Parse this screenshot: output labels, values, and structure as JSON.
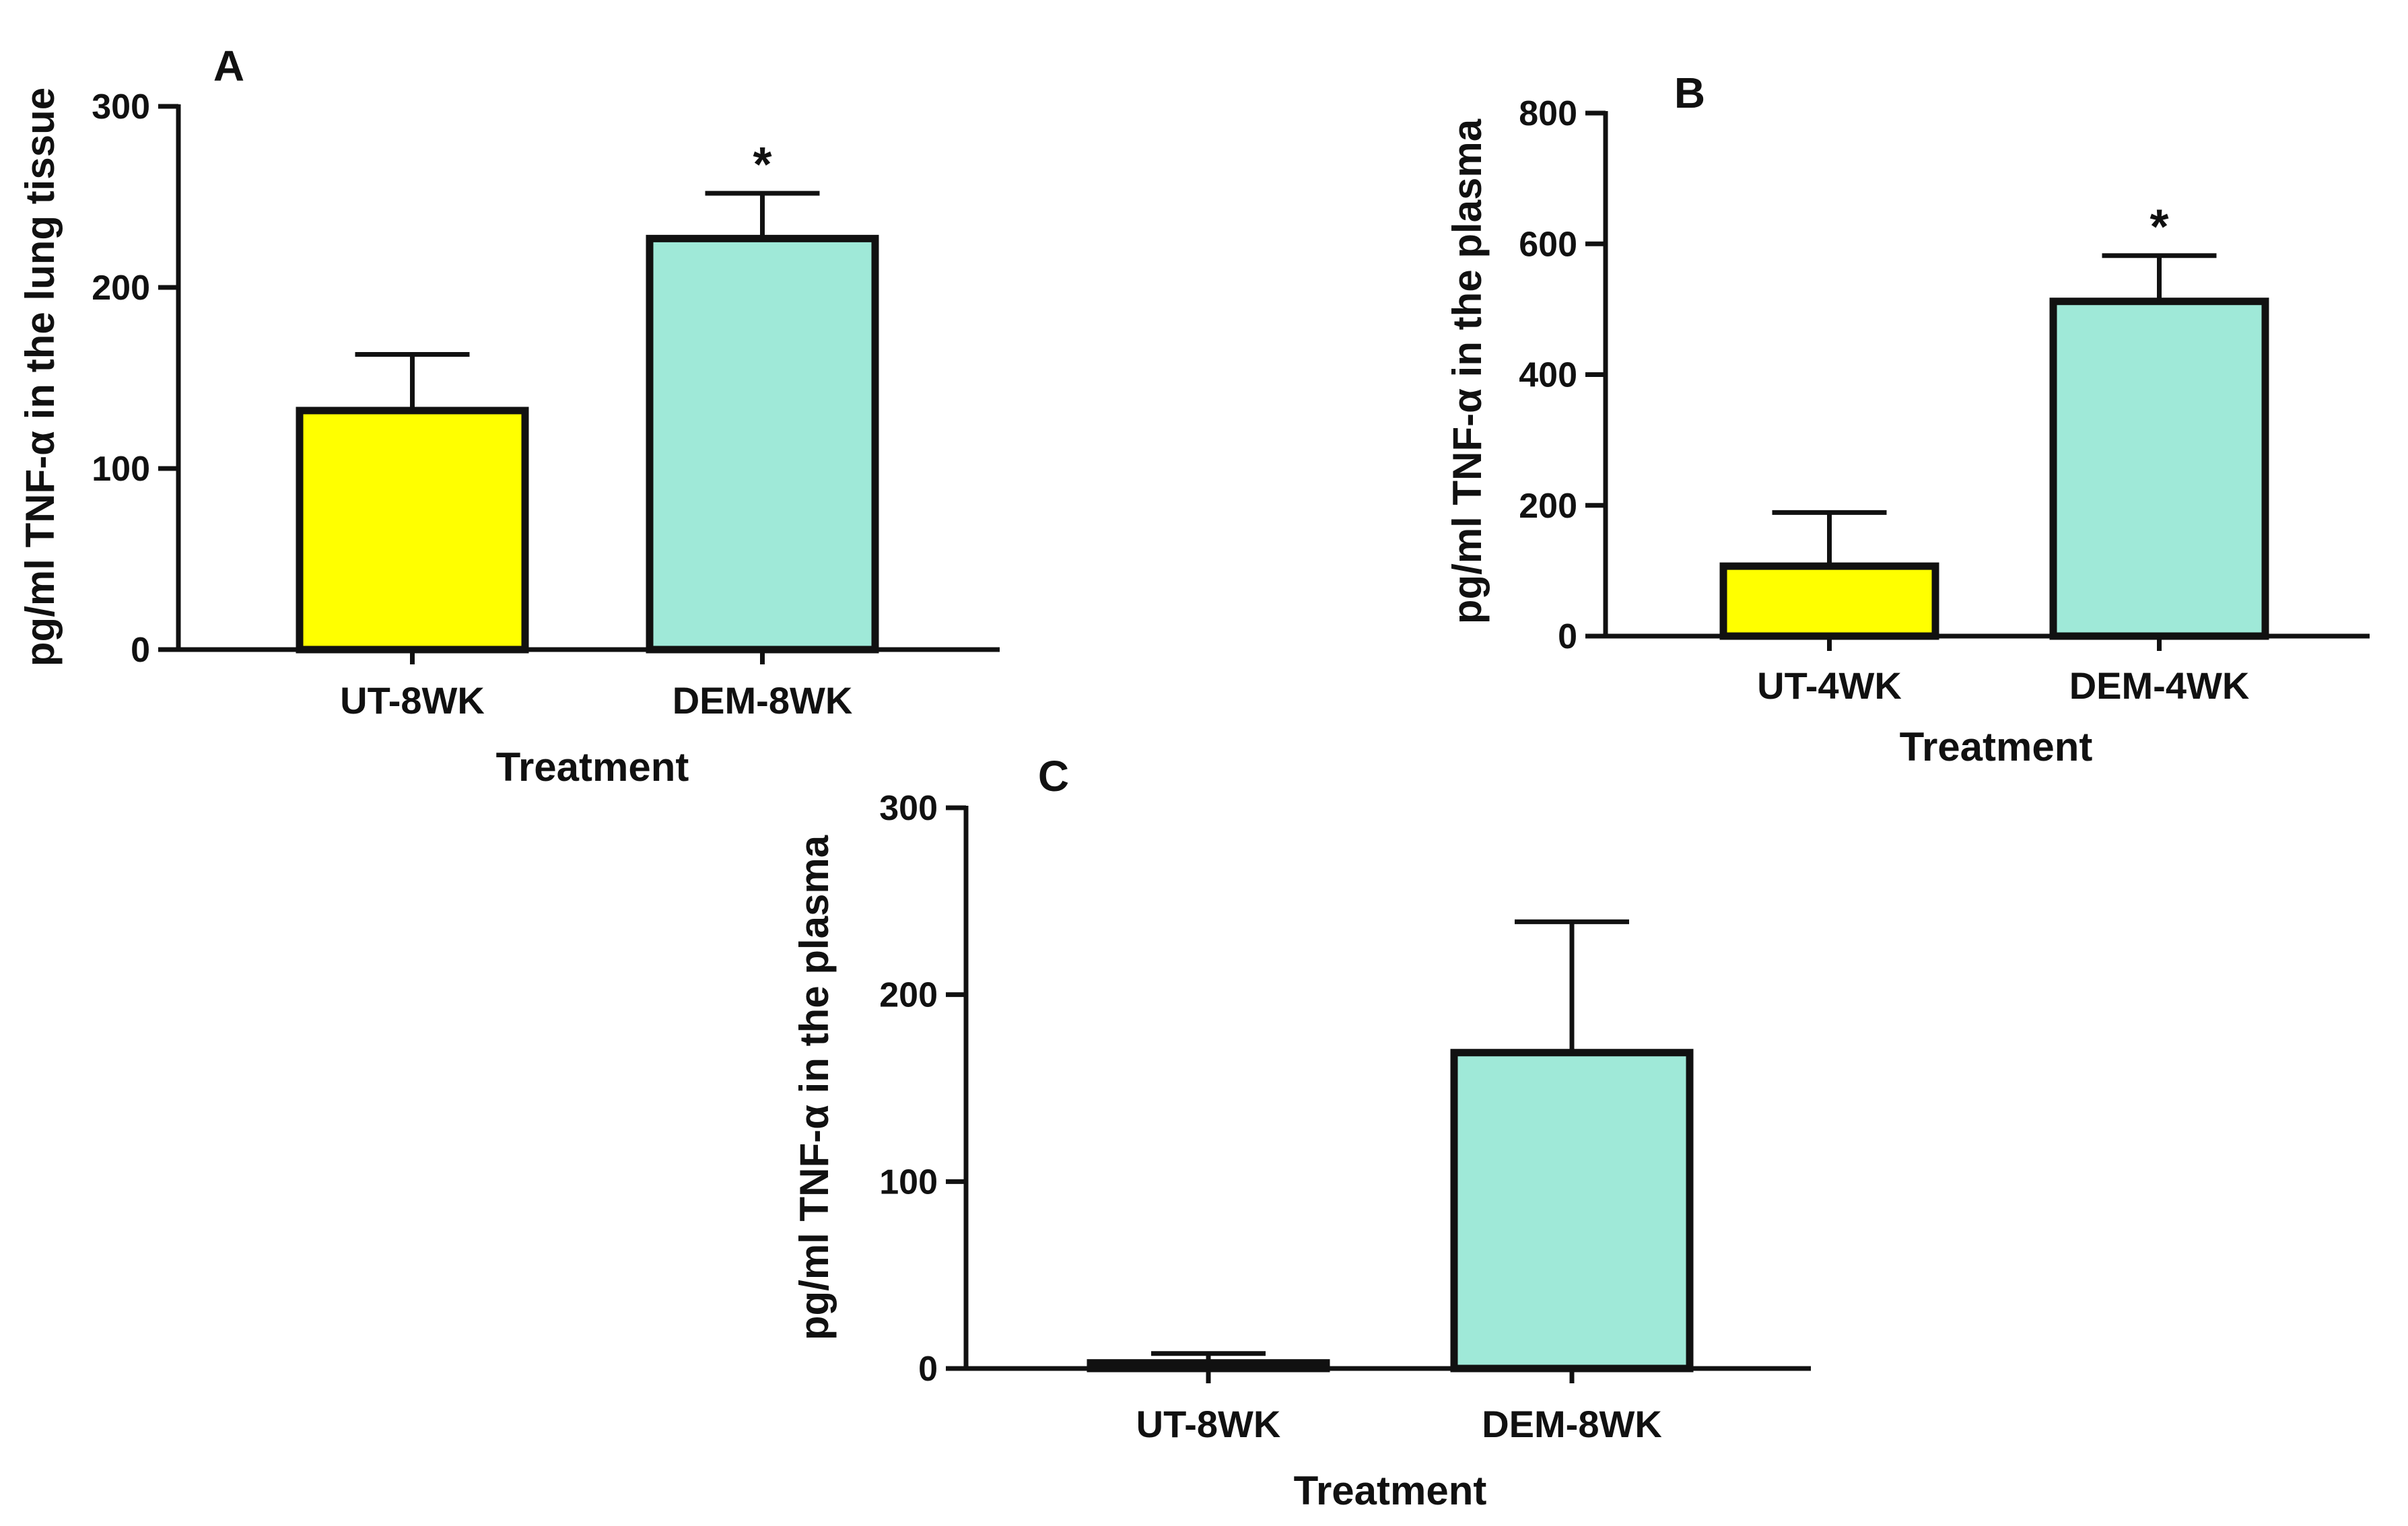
{
  "figure": {
    "description": "TNF-alpha concentration by treatment group"
  },
  "colors": {
    "untreated": "#ffff00",
    "dem": "#9fe9d8",
    "stroke": "#111111"
  },
  "chart_data": [
    {
      "type": "bar",
      "panel": "A",
      "categories": [
        "UT-8WK",
        "DEM-8WK"
      ],
      "values": [
        132,
        227
      ],
      "errors": [
        31,
        25
      ],
      "significance": [
        "",
        "*"
      ],
      "title": "",
      "xlabel": "Treatment",
      "ylabel": "pg/ml TNF-α in the lung tissue",
      "ylim": [
        0,
        300
      ],
      "yticks": [
        0,
        100,
        200,
        300
      ],
      "ytick_labels": [
        "0",
        "100",
        "200",
        "300"
      ],
      "bar_colors": [
        "untreated",
        "dem"
      ]
    },
    {
      "type": "bar",
      "panel": "B",
      "categories": [
        "UT-4WK",
        "DEM-4WK"
      ],
      "values": [
        107,
        512
      ],
      "errors": [
        82,
        70
      ],
      "significance": [
        "",
        "*"
      ],
      "title": "",
      "xlabel": "Treatment",
      "ylabel": "pg/ml TNF-α in the plasma",
      "ylim": [
        0,
        800
      ],
      "yticks": [
        0,
        200,
        400,
        600,
        800
      ],
      "ytick_labels": [
        "0",
        "200",
        "400",
        "600",
        "800"
      ],
      "bar_colors": [
        "untreated",
        "dem"
      ]
    },
    {
      "type": "bar",
      "panel": "C",
      "categories": [
        "UT-8WK",
        "DEM-8WK"
      ],
      "values": [
        3,
        169
      ],
      "errors": [
        5,
        70
      ],
      "significance": [
        "",
        ""
      ],
      "title": "",
      "xlabel": "Treatment",
      "ylabel": "pg/ml TNF-α in the plasma",
      "ylim": [
        0,
        300
      ],
      "yticks": [
        0,
        100,
        200,
        300
      ],
      "ytick_labels": [
        "0",
        "100",
        "200",
        "300"
      ],
      "bar_colors": [
        "untreated",
        "dem"
      ]
    }
  ]
}
